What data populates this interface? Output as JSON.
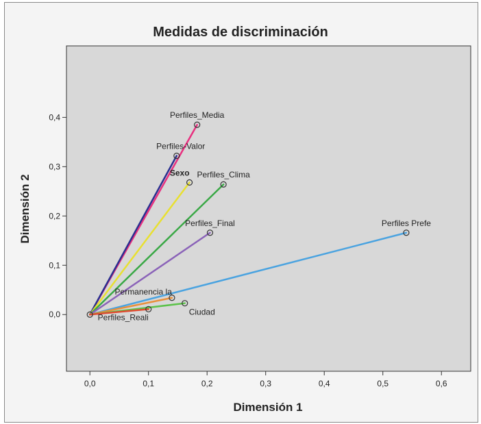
{
  "chart_data": {
    "type": "scatter",
    "title": "Medidas de discriminación",
    "xlabel": "Dimensión 1",
    "ylabel": "Dimensión 2",
    "xlim": [
      -0.04,
      0.65
    ],
    "ylim": [
      -0.115,
      0.545
    ],
    "xticks": [
      {
        "v": 0,
        "label": "0,0"
      },
      {
        "v": 0.1,
        "label": "0,1"
      },
      {
        "v": 0.2,
        "label": "0,2"
      },
      {
        "v": 0.3,
        "label": "0,3"
      },
      {
        "v": 0.4,
        "label": "0,4"
      },
      {
        "v": 0.5,
        "label": "0,5"
      },
      {
        "v": 0.6,
        "label": "0,6"
      }
    ],
    "yticks": [
      {
        "v": 0,
        "label": "0,0"
      },
      {
        "v": 0.1,
        "label": "0,1"
      },
      {
        "v": 0.2,
        "label": "0,2"
      },
      {
        "v": 0.3,
        "label": "0,3"
      },
      {
        "v": 0.4,
        "label": "0,4"
      }
    ],
    "grid": false,
    "origin": [
      0,
      0
    ],
    "points": [
      {
        "name": "Perfiles_Media",
        "x": 0.183,
        "y": 0.385,
        "color": "#e8307f",
        "bold": false,
        "anchor": "middle",
        "dx": 0,
        "dy": -10
      },
      {
        "name": "Perfiles-Valor",
        "x": 0.148,
        "y": 0.322,
        "color": "#2a2f8f",
        "bold": false,
        "anchor": "middle",
        "dx": 6,
        "dy": -10
      },
      {
        "name": "Sexo",
        "x": 0.17,
        "y": 0.268,
        "color": "#e8e030",
        "bold": true,
        "anchor": "end",
        "dx": 0,
        "dy": -10
      },
      {
        "name": "Perfiles_Clima",
        "x": 0.228,
        "y": 0.264,
        "color": "#39a845",
        "bold": false,
        "anchor": "middle",
        "dx": 0,
        "dy": -10
      },
      {
        "name": "Perfiles_Final",
        "x": 0.205,
        "y": 0.166,
        "color": "#8a62b8",
        "bold": false,
        "anchor": "middle",
        "dx": 0,
        "dy": -10
      },
      {
        "name": "Perfiles Prefe",
        "x": 0.54,
        "y": 0.166,
        "color": "#4aa3e0",
        "bold": false,
        "anchor": "middle",
        "dx": 0,
        "dy": -10
      },
      {
        "name": "Permanencia la",
        "x": 0.14,
        "y": 0.034,
        "color": "#e8903a",
        "bold": false,
        "anchor": "end",
        "dx": 0,
        "dy": -5
      },
      {
        "name": "Ciudad",
        "x": 0.162,
        "y": 0.023,
        "color": "#5cc24a",
        "bold": false,
        "anchor": "start",
        "dx": 6,
        "dy": 17
      },
      {
        "name": "Perfiles_Reali",
        "x": 0.1,
        "y": 0.011,
        "color": "#e04a30",
        "bold": false,
        "anchor": "end",
        "dx": 0,
        "dy": 16
      }
    ]
  }
}
